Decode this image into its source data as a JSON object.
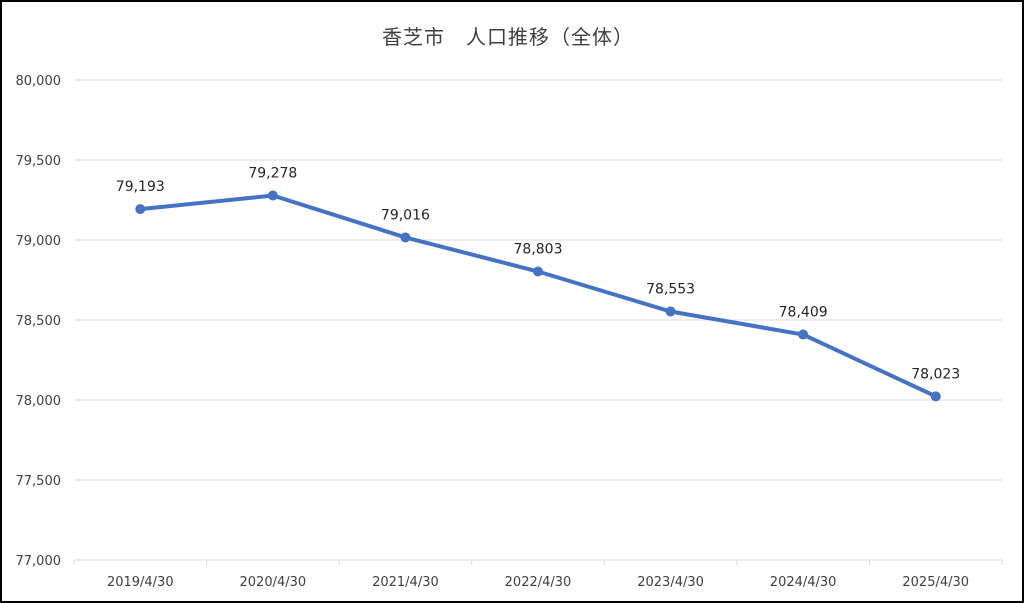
{
  "chart_data": {
    "type": "line",
    "title": "香芝市　人口推移（全体）",
    "xlabel": "",
    "ylabel": "",
    "categories": [
      "2019/4/30",
      "2020/4/30",
      "2021/4/30",
      "2022/4/30",
      "2023/4/30",
      "2024/4/30",
      "2025/4/30"
    ],
    "series": [
      {
        "values": [
          79193,
          79278,
          79016,
          78803,
          78553,
          78409,
          78023
        ],
        "labels": [
          "79,193",
          "79,278",
          "79,016",
          "78,803",
          "78,553",
          "78,409",
          "78,023"
        ]
      }
    ],
    "ylim": [
      77000,
      80000
    ],
    "ytick_labels": [
      "77,000",
      "77,500",
      "78,000",
      "78,500",
      "79,000",
      "79,500",
      "80,000"
    ],
    "grid": true,
    "legend": "none",
    "colors": {
      "line": "#4472C4",
      "grid": "#D9D9D9",
      "text": "#404040"
    }
  }
}
